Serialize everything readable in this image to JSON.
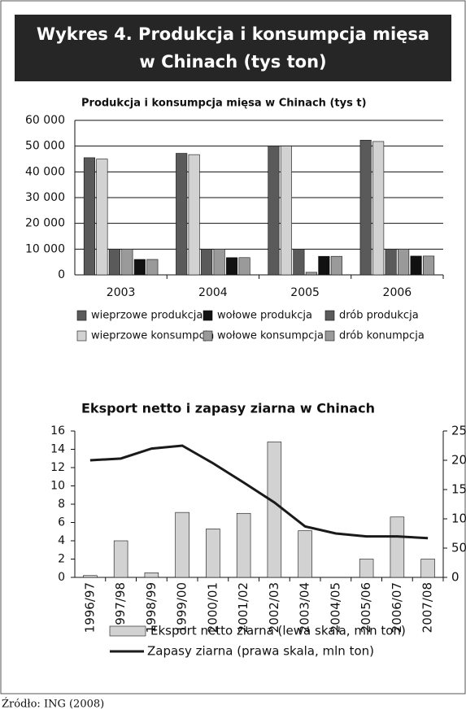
{
  "header": {
    "title": "Wykres 4. Produkcja i konsumpcja mięsa w Chinach (tys ton)"
  },
  "chart_data": [
    {
      "type": "bar",
      "title": "Produkcja i konsumpcja mięsa w Chinach (tys t)",
      "categories": [
        "2003",
        "2004",
        "2005",
        "2006"
      ],
      "series": [
        {
          "name": "wieprzowe produkcja",
          "color": "#5a5a5a",
          "values": [
            45500,
            47200,
            50000,
            52300
          ]
        },
        {
          "name": "wieprzowe konsumpcja",
          "color": "#d2d2d2",
          "values": [
            45000,
            46700,
            50000,
            51800
          ]
        },
        {
          "name": "drób produkcja",
          "color": "#5a5a5a",
          "values": [
            10000,
            10000,
            10000,
            10000
          ]
        },
        {
          "name": "drób konumpcja",
          "color": "#9a9a9a",
          "values": [
            10000,
            10000,
            1000,
            10000
          ]
        },
        {
          "name": "wołowe produkcja",
          "color": "#111111",
          "values": [
            6000,
            6700,
            7200,
            7300
          ]
        },
        {
          "name": "wołowe konsumpcja",
          "color": "#9a9a9a",
          "values": [
            6000,
            6700,
            7200,
            7300
          ]
        }
      ],
      "ylim": [
        0,
        60000
      ],
      "yticks": [
        0,
        {
          "value": 10000,
          "label": "10 000"
        },
        {
          "value": 20000,
          "label": "20 000"
        },
        {
          "value": 30000,
          "label": "30 000"
        },
        {
          "value": 40000,
          "label": "40 000"
        },
        {
          "value": 50000,
          "label": "50 000"
        },
        {
          "value": 60000,
          "label": "60 000"
        }
      ],
      "grid": true
    },
    {
      "type": "bar",
      "title": "Eksport netto i zapasy ziarna w Chinach",
      "categories": [
        "1996/97",
        "1997/98",
        "1998/99",
        "1999/00",
        "2000/01",
        "2001/02",
        "2002/03",
        "2003/04",
        "2004/05",
        "2005/06",
        "2006/07",
        "2007/08"
      ],
      "series": [
        {
          "name": "Eksport netto ziarna (lewa skala, mln ton)",
          "color": "#d2d2d2",
          "values": [
            0.2,
            4.0,
            0.5,
            7.1,
            5.3,
            7.0,
            14.8,
            5.1,
            0,
            2.0,
            6.6,
            2.0
          ]
        },
        {
          "name": "Zapasy ziarna (prawa skala, mln ton)",
          "type": "line",
          "axis": "y2",
          "color": "#1a1a1a",
          "values": [
            200,
            203,
            220,
            225,
            195,
            162,
            128,
            87,
            75,
            70,
            70,
            67
          ]
        }
      ],
      "ylim": [
        0,
        16
      ],
      "yticks": [
        0,
        2,
        4,
        6,
        8,
        10,
        12,
        14,
        16
      ],
      "y2lim": [
        0,
        250
      ],
      "y2ticks": [
        0,
        50,
        100,
        150,
        200,
        250
      ],
      "grid": false
    }
  ],
  "source": "Źródło: ING (2008)"
}
